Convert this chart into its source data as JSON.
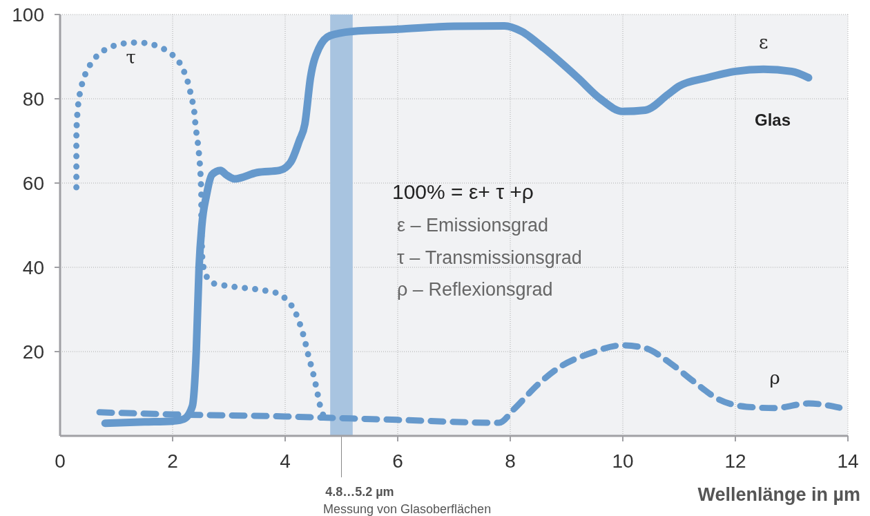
{
  "chart_data": {
    "type": "line",
    "xlabel": "Wellenlänge in µm",
    "xlim": [
      0,
      14
    ],
    "xticks": [
      0,
      2,
      4,
      6,
      8,
      10,
      12,
      14
    ],
    "ylim": [
      0,
      100
    ],
    "yticks": [
      20,
      40,
      60,
      80,
      100
    ],
    "grid": true,
    "legend": false,
    "series": [
      {
        "name": "ε",
        "color": "#6699cc",
        "line_style": "solid",
        "x": [
          0.8,
          1.5,
          2,
          2.2,
          2.35,
          2.42,
          2.47,
          2.52,
          2.6,
          2.7,
          2.85,
          2.95,
          3.1,
          3.5,
          3.9,
          4.1,
          4.25,
          4.35,
          4.45,
          4.6,
          4.8,
          5.2,
          6,
          7,
          7.9,
          8.2,
          8.6,
          9.2,
          9.6,
          10,
          10.4,
          10.8,
          11,
          11.5,
          12,
          12.5,
          13,
          13.3
        ],
        "values": [
          3,
          3.3,
          3.5,
          4,
          7,
          20,
          40,
          50,
          57,
          62,
          63,
          62,
          61,
          62.5,
          63,
          65,
          70,
          74,
          85,
          92,
          95,
          96,
          96.5,
          97.2,
          97.3,
          96,
          92,
          85,
          80,
          77,
          77.3,
          81,
          83,
          85,
          86.5,
          87,
          86.5,
          85
        ]
      },
      {
        "name": "τ",
        "color": "#6699cc",
        "line_style": "dotted",
        "x": [
          0.29,
          0.29,
          0.29,
          0.29,
          0.3,
          0.33,
          0.39,
          0.5,
          0.69,
          0.96,
          1.26,
          1.57,
          1.86,
          2.1,
          2.24,
          2.32,
          2.38,
          2.41,
          2.45,
          2.48,
          2.5,
          2.51,
          2.51,
          2.52,
          2.55,
          2.67,
          2.97,
          3.28,
          3.59,
          3.9,
          4.12,
          4.25,
          4.34,
          4.41,
          4.49,
          4.56,
          4.62,
          4.72
        ],
        "values": [
          59,
          63,
          67,
          71,
          75,
          79.5,
          83.5,
          87.3,
          90.6,
          92.6,
          93.3,
          93.1,
          91.7,
          89,
          85.2,
          81.3,
          77.4,
          73.3,
          69.3,
          65.2,
          61,
          57,
          53,
          45,
          40,
          36.6,
          35.6,
          35.1,
          34.6,
          33.6,
          30.8,
          27,
          23.1,
          19.2,
          15.2,
          11.1,
          7.2,
          3.3
        ]
      },
      {
        "name": "ρ",
        "color": "#6699cc",
        "line_style": "dashed",
        "x": [
          0.7,
          2,
          4,
          5,
          6,
          7.8,
          8.07,
          8.5,
          8.9,
          9.4,
          10,
          10.4,
          10.85,
          11.25,
          11.7,
          12.2,
          12.7,
          13.3,
          13.85
        ],
        "values": [
          5.6,
          5.1,
          4.6,
          4.2,
          3.8,
          3.1,
          6.4,
          12.3,
          16.5,
          19.5,
          21.5,
          20.8,
          17.2,
          13,
          8.7,
          6.9,
          6.6,
          7.7,
          6.7
        ]
      }
    ],
    "bands": [
      {
        "axis": "x",
        "from": 4.8,
        "to": 5.2,
        "label": "4.8…5.2 µm",
        "color": "#a8c4e0"
      }
    ],
    "annotations": [
      "Messung von Glasoberflächen",
      "100% = ε+ τ +ρ",
      "ε – Emissionsgrad",
      "τ –  Transmissionsgrad",
      "ρ – Reflexionsgrad",
      "Glas"
    ]
  }
}
